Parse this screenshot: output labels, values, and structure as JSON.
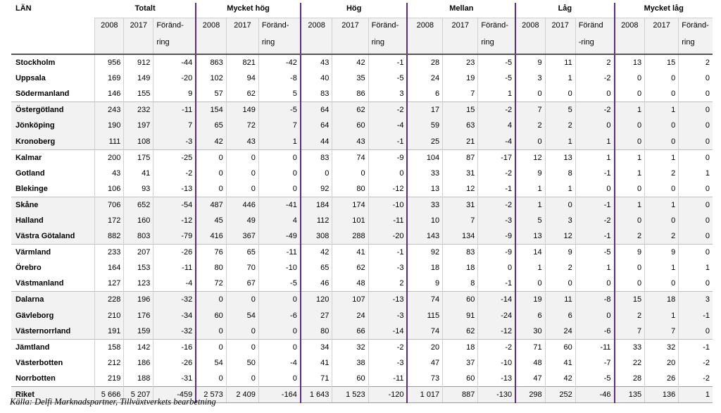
{
  "header": {
    "lan": "LÄN",
    "groups": [
      "Totalt",
      "Mycket hög",
      "Hög",
      "Mellan",
      "Låg",
      "Mycket låg"
    ],
    "year_a": "2008",
    "year_b": "2017",
    "change_top": [
      "Föränd-",
      "Föränd-",
      "Föränd-",
      "Föränd-",
      "Föränd",
      "Föränd-"
    ],
    "change_bottom": [
      "ring",
      "ring",
      "ring",
      "ring",
      "-ring",
      "ring"
    ]
  },
  "rows": [
    {
      "name": "Stockholm",
      "v": [
        "956",
        "912",
        "-44",
        "863",
        "821",
        "-42",
        "43",
        "42",
        "-1",
        "28",
        "23",
        "-5",
        "9",
        "11",
        "2",
        "13",
        "15",
        "2"
      ]
    },
    {
      "name": "Uppsala",
      "v": [
        "169",
        "149",
        "-20",
        "102",
        "94",
        "-8",
        "40",
        "35",
        "-5",
        "24",
        "19",
        "-5",
        "3",
        "1",
        "-2",
        "0",
        "0",
        "0"
      ]
    },
    {
      "name": "Södermanland",
      "v": [
        "146",
        "155",
        "9",
        "57",
        "62",
        "5",
        "83",
        "86",
        "3",
        "6",
        "7",
        "1",
        "0",
        "0",
        "0",
        "0",
        "0",
        "0"
      ]
    },
    {
      "name": "Östergötland",
      "v": [
        "243",
        "232",
        "-11",
        "154",
        "149",
        "-5",
        "64",
        "62",
        "-2",
        "17",
        "15",
        "-2",
        "7",
        "5",
        "-2",
        "1",
        "1",
        "0"
      ]
    },
    {
      "name": "Jönköping",
      "v": [
        "190",
        "197",
        "7",
        "65",
        "72",
        "7",
        "64",
        "60",
        "-4",
        "59",
        "63",
        "4",
        "2",
        "2",
        "0",
        "0",
        "0",
        "0"
      ]
    },
    {
      "name": "Kronoberg",
      "v": [
        "111",
        "108",
        "-3",
        "42",
        "43",
        "1",
        "44",
        "43",
        "-1",
        "25",
        "21",
        "-4",
        "0",
        "1",
        "1",
        "0",
        "0",
        "0"
      ]
    },
    {
      "name": "Kalmar",
      "v": [
        "200",
        "175",
        "-25",
        "0",
        "0",
        "0",
        "83",
        "74",
        "-9",
        "104",
        "87",
        "-17",
        "12",
        "13",
        "1",
        "1",
        "1",
        "0"
      ]
    },
    {
      "name": "Gotland",
      "v": [
        "43",
        "41",
        "-2",
        "0",
        "0",
        "0",
        "0",
        "0",
        "0",
        "33",
        "31",
        "-2",
        "9",
        "8",
        "-1",
        "1",
        "2",
        "1"
      ]
    },
    {
      "name": "Blekinge",
      "v": [
        "106",
        "93",
        "-13",
        "0",
        "0",
        "0",
        "92",
        "80",
        "-12",
        "13",
        "12",
        "-1",
        "1",
        "1",
        "0",
        "0",
        "0",
        "0"
      ]
    },
    {
      "name": "Skåne",
      "v": [
        "706",
        "652",
        "-54",
        "487",
        "446",
        "-41",
        "184",
        "174",
        "-10",
        "33",
        "31",
        "-2",
        "1",
        "0",
        "-1",
        "1",
        "1",
        "0"
      ]
    },
    {
      "name": "Halland",
      "v": [
        "172",
        "160",
        "-12",
        "45",
        "49",
        "4",
        "112",
        "101",
        "-11",
        "10",
        "7",
        "-3",
        "5",
        "3",
        "-2",
        "0",
        "0",
        "0"
      ]
    },
    {
      "name": "Västra Götaland",
      "v": [
        "882",
        "803",
        "-79",
        "416",
        "367",
        "-49",
        "308",
        "288",
        "-20",
        "143",
        "134",
        "-9",
        "13",
        "12",
        "-1",
        "2",
        "2",
        "0"
      ]
    },
    {
      "name": "Värmland",
      "v": [
        "233",
        "207",
        "-26",
        "76",
        "65",
        "-11",
        "42",
        "41",
        "-1",
        "92",
        "83",
        "-9",
        "14",
        "9",
        "-5",
        "9",
        "9",
        "0"
      ]
    },
    {
      "name": "Örebro",
      "v": [
        "164",
        "153",
        "-11",
        "80",
        "70",
        "-10",
        "65",
        "62",
        "-3",
        "18",
        "18",
        "0",
        "1",
        "2",
        "1",
        "0",
        "1",
        "1"
      ]
    },
    {
      "name": "Västmanland",
      "v": [
        "127",
        "123",
        "-4",
        "72",
        "67",
        "-5",
        "46",
        "48",
        "2",
        "9",
        "8",
        "-1",
        "0",
        "0",
        "0",
        "0",
        "0",
        "0"
      ]
    },
    {
      "name": "Dalarna",
      "v": [
        "228",
        "196",
        "-32",
        "0",
        "0",
        "0",
        "120",
        "107",
        "-13",
        "74",
        "60",
        "-14",
        "19",
        "11",
        "-8",
        "15",
        "18",
        "3"
      ]
    },
    {
      "name": "Gävleborg",
      "v": [
        "210",
        "176",
        "-34",
        "60",
        "54",
        "-6",
        "27",
        "24",
        "-3",
        "115",
        "91",
        "-24",
        "6",
        "6",
        "0",
        "2",
        "1",
        "-1"
      ]
    },
    {
      "name": "Västernorrland",
      "v": [
        "191",
        "159",
        "-32",
        "0",
        "0",
        "0",
        "80",
        "66",
        "-14",
        "74",
        "62",
        "-12",
        "30",
        "24",
        "-6",
        "7",
        "7",
        "0"
      ]
    },
    {
      "name": "Jämtland",
      "v": [
        "158",
        "142",
        "-16",
        "0",
        "0",
        "0",
        "34",
        "32",
        "-2",
        "20",
        "18",
        "-2",
        "71",
        "60",
        "-11",
        "33",
        "32",
        "-1"
      ]
    },
    {
      "name": "Västerbotten",
      "v": [
        "212",
        "186",
        "-26",
        "54",
        "50",
        "-4",
        "41",
        "38",
        "-3",
        "47",
        "37",
        "-10",
        "48",
        "41",
        "-7",
        "22",
        "20",
        "-2"
      ]
    },
    {
      "name": "Norrbotten",
      "v": [
        "219",
        "188",
        "-31",
        "0",
        "0",
        "0",
        "71",
        "60",
        "-11",
        "73",
        "60",
        "-13",
        "47",
        "42",
        "-5",
        "28",
        "26",
        "-2"
      ]
    },
    {
      "name": "Riket",
      "v": [
        "5 666",
        "5 207",
        "-459",
        "2 573",
        "2 409",
        "-164",
        "1 643",
        "1 523",
        "-120",
        "1 017",
        "887",
        "-130",
        "298",
        "252",
        "-46",
        "135",
        "136",
        "1"
      ]
    }
  ],
  "source": "Källa: Delfi Marknadspartner, Tillväxtverkets bearbetning"
}
